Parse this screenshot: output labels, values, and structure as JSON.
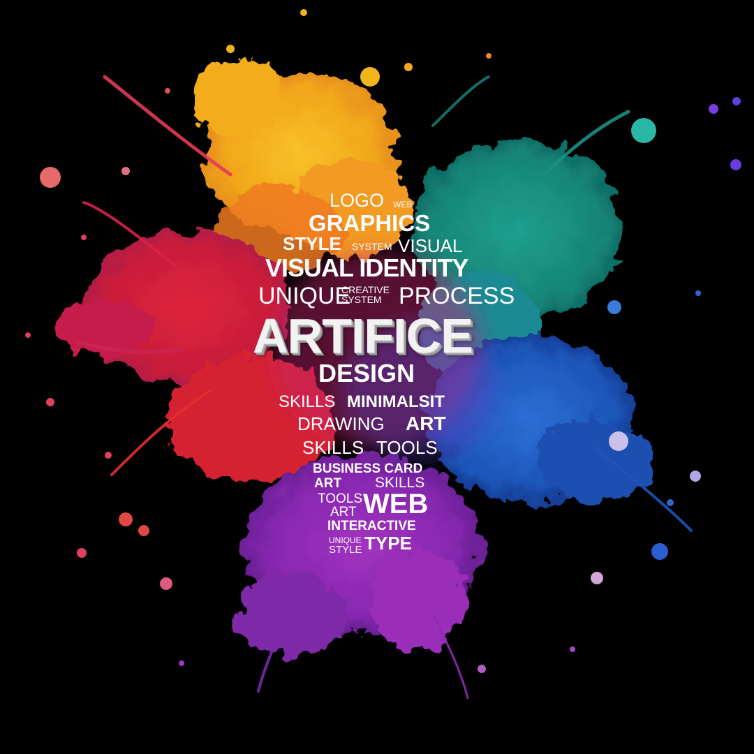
{
  "colors": {
    "background": "#000000",
    "yellow": "#f4b21c",
    "orange": "#f08a1e",
    "red": "#d81e3a",
    "magenta": "#c4246e",
    "teal": "#1b8f84",
    "blue": "#1f5fc4",
    "purple": "#8a2bb6",
    "text": "#ffffff"
  },
  "brand": "ARTIFICE",
  "words": {
    "logo": "LOGO",
    "web_small": "WEB",
    "graphics": "GRAPHICS",
    "style": "STYLE",
    "system": "SYSTEM",
    "visual": "VISUAL",
    "visual_identity": "VISUAL IDENTITY",
    "unique": "UNIQUE",
    "creative": "CREATIVE",
    "system_2": "SYSTEM",
    "process": "PROCESS",
    "design": "DESIGN",
    "skills": "SKILLS",
    "minimalsit": "MINIMALSIT",
    "drawing": "DRAWING",
    "art": "ART",
    "skills_2": "SKILLS",
    "tools": "TOOLS",
    "business_card": "BUSINESS CARD",
    "art_2": "ART",
    "skills_3": "SKILLS",
    "tools_2": "TOOLS",
    "art_3": "ART",
    "web": "WEB",
    "interactive": "INTERACTIVE",
    "unique_2": "UNIQUE",
    "style_2": "STYLE",
    "type": "TYPE"
  }
}
